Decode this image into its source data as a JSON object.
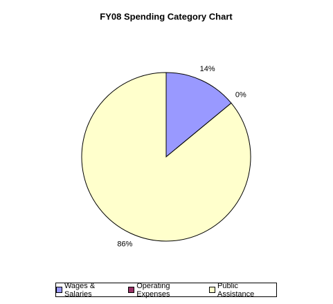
{
  "chart_data": {
    "type": "pie",
    "title": "FY08 Spending Category Chart",
    "categories": [
      "Wages & Salaries",
      "Operating Expenses",
      "Public Assistance"
    ],
    "values": [
      14,
      0,
      86
    ],
    "value_labels": [
      "14%",
      "0%",
      "86%"
    ],
    "colors": [
      "#9999ff",
      "#993366",
      "#ffffcc"
    ],
    "legend": "bottom"
  }
}
